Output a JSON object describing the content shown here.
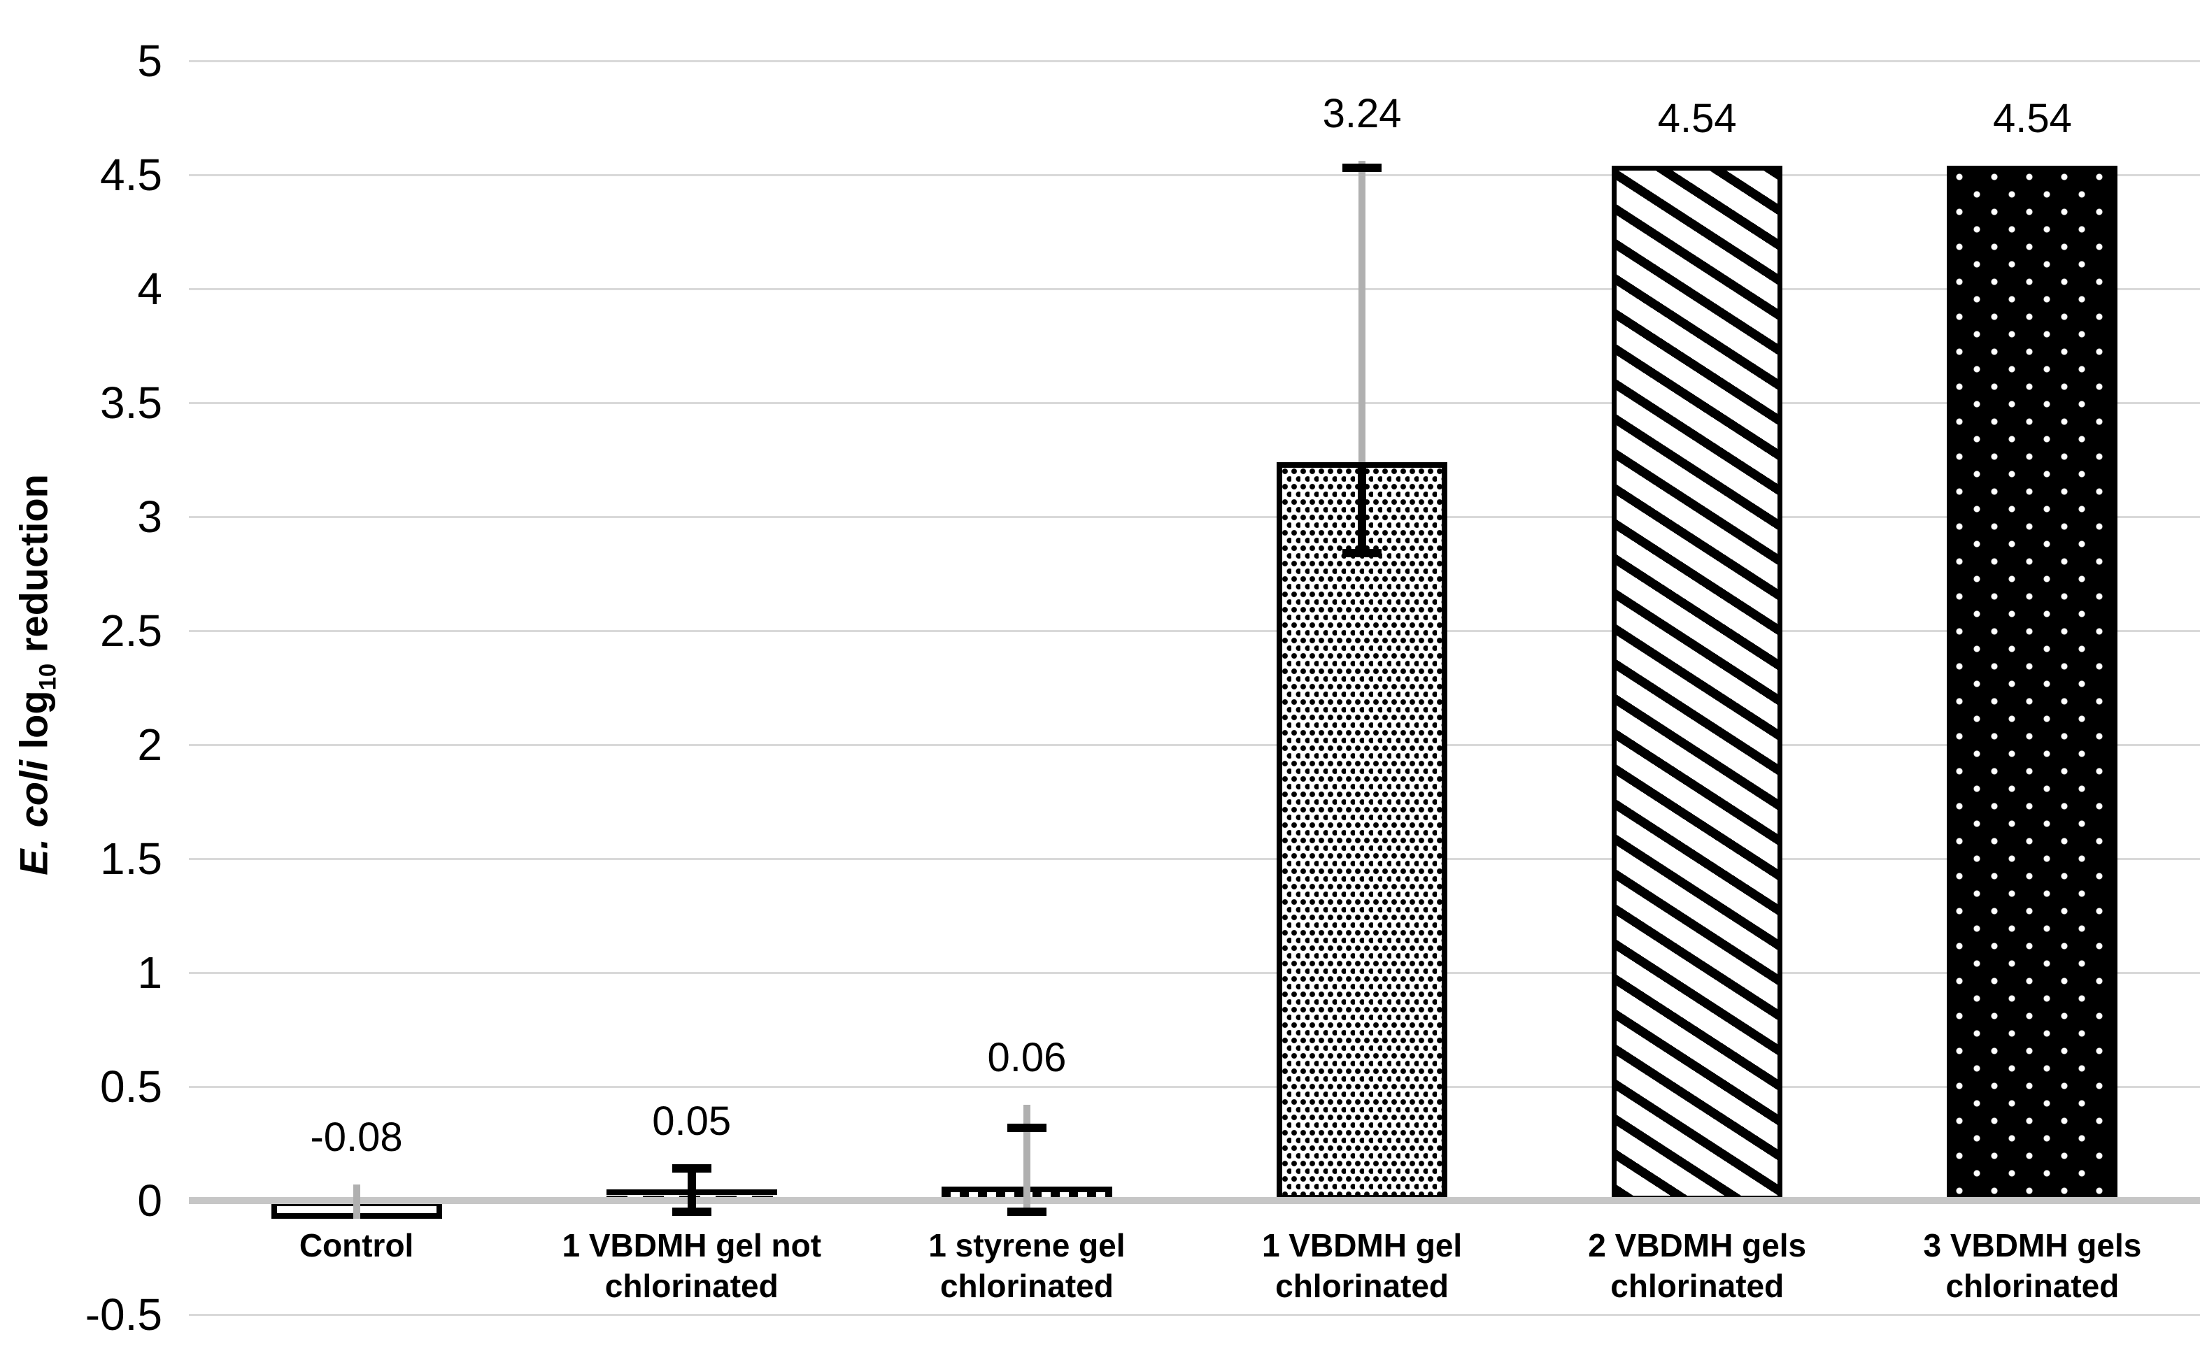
{
  "chart_data": {
    "type": "bar",
    "title": "",
    "xlabel": "",
    "ylabel": "E. coli log10 reduction",
    "ylabel_parts": {
      "italic": "E. coli",
      "log": " log",
      "subscript": "10",
      "rest": " reduction"
    },
    "ylim": [
      -0.5,
      5
    ],
    "ytick_step": 0.5,
    "ytick_labels": [
      "5",
      "4.5",
      "4",
      "3.5",
      "3",
      "2.5",
      "2",
      "1.5",
      "1",
      "0.5",
      "0",
      "-0.5"
    ],
    "grid": true,
    "legend_position": "none",
    "categories": [
      "Control",
      "1 VBDMH gel not chlorinated",
      "1 styrene gel chlorinated",
      "1 VBDMH gel chlorinated",
      "2 VBDMH gels chlorinated",
      "3 VBDMH gels chlorinated"
    ],
    "values": [
      -0.08,
      0.05,
      0.06,
      3.24,
      4.54,
      4.54
    ],
    "bars": [
      {
        "label_lines": [
          "Control"
        ],
        "value": -0.08,
        "data_label": "-0.08",
        "pattern": "plain-white",
        "border_px": 8,
        "error_bar": {
          "gray_stem": [
            -0.08,
            0.07
          ],
          "black_stem": null,
          "caps": []
        }
      },
      {
        "label_lines": [
          "1 VBDMH gel not",
          "chlorinated"
        ],
        "value": 0.05,
        "data_label": "0.05",
        "pattern": "dash-horizontal",
        "border_px": 0,
        "error_bar": {
          "gray_stem": null,
          "black_stem": [
            -0.05,
            0.14
          ],
          "caps": [
            -0.05,
            0.14
          ]
        }
      },
      {
        "label_lines": [
          "1 styrene gel",
          "chlorinated"
        ],
        "value": 0.06,
        "data_label": "0.06",
        "pattern": "dash-vertical",
        "border_px": 0,
        "error_bar": {
          "gray_stem": [
            -0.06,
            0.42
          ],
          "black_stem": null,
          "caps": [
            -0.05,
            0.32
          ]
        }
      },
      {
        "label_lines": [
          "1 VBDMH gel",
          "chlorinated"
        ],
        "value": 3.24,
        "data_label": "3.24",
        "pattern": "dot-grid",
        "border_px": 8,
        "error_bar": {
          "gray_stem": [
            2.84,
            4.56
          ],
          "black_stem": [
            2.84,
            3.24
          ],
          "caps": [
            2.84,
            4.53
          ]
        }
      },
      {
        "label_lines": [
          "2 VBDMH gels",
          "chlorinated"
        ],
        "value": 4.54,
        "data_label": "4.54",
        "pattern": "diagonal-down",
        "border_px": 7,
        "error_bar": null
      },
      {
        "label_lines": [
          "3 VBDMH gels",
          "chlorinated"
        ],
        "value": 4.54,
        "data_label": "4.54",
        "pattern": "black-white-dots",
        "border_px": 6,
        "error_bar": null
      }
    ],
    "colors": {
      "bar_stroke": "#000000",
      "gridline": "#d9d9d9",
      "zero_line": "#c6c6c6",
      "error_gray": "#b0b0b0",
      "error_black": "#000000",
      "text": "#000000",
      "background": "#ffffff"
    }
  }
}
